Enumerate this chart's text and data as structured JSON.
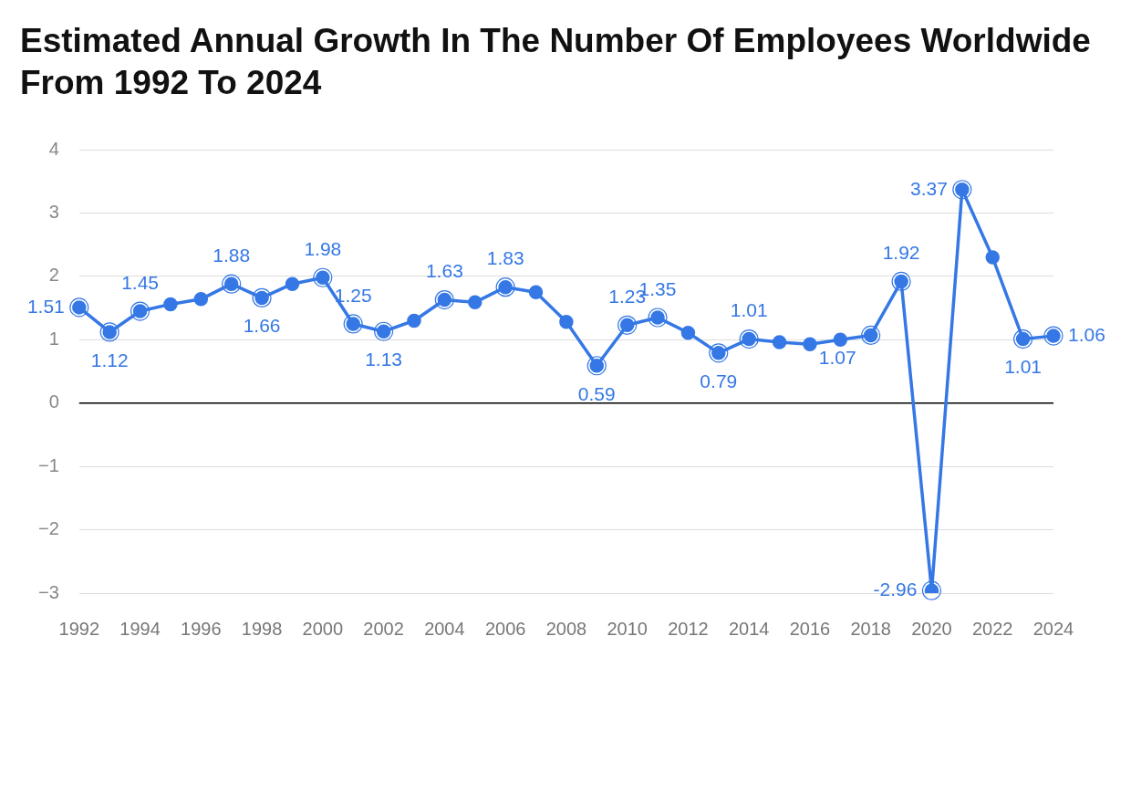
{
  "chart_data": {
    "type": "line",
    "title": "Estimated Annual Growth In The Number Of Employees Worldwide From 1992 To 2024",
    "categories": [
      "1992",
      null,
      "1994",
      null,
      "1996",
      null,
      "1998",
      null,
      "2000",
      null,
      "2002",
      null,
      "2004",
      null,
      "2006",
      null,
      "2008",
      null,
      "2010",
      null,
      "2012",
      null,
      "2014",
      null,
      "2016",
      null,
      "2018",
      null,
      "2020",
      null,
      "2022",
      null,
      "2024"
    ],
    "series": [
      {
        "color": "#3578e5",
        "values": [
          1.51,
          1.12,
          1.45,
          1.56,
          1.64,
          1.88,
          1.66,
          1.88,
          1.98,
          1.25,
          1.13,
          1.3,
          1.63,
          1.59,
          1.83,
          1.75,
          1.28,
          0.59,
          1.23,
          1.35,
          1.11,
          0.79,
          1.01,
          0.96,
          0.93,
          1.0,
          1.07,
          1.92,
          -2.96,
          3.37,
          2.3,
          1.01,
          1.06
        ],
        "value_labels": [
          "1.51",
          "1.12",
          "1.45",
          null,
          null,
          "1.88",
          "1.66",
          null,
          "1.98",
          "1.25",
          "1.13",
          null,
          "1.63",
          null,
          "1.83",
          null,
          null,
          "0.59",
          "1.23",
          "1.35",
          null,
          "0.79",
          "1.01",
          null,
          null,
          null,
          "1.07",
          "1.92",
          "-2.96",
          "3.37",
          null,
          "1.01",
          "1.06"
        ]
      }
    ],
    "ylim": [
      -3,
      4
    ],
    "yticks": [
      -3,
      -2,
      -1,
      0,
      1,
      2,
      3,
      4
    ],
    "grid": "y",
    "legend": false,
    "marker": "circle",
    "line_style": "solid",
    "ref_lines": [
      {
        "axis": "y",
        "value": 0,
        "color": "#000000"
      }
    ]
  }
}
